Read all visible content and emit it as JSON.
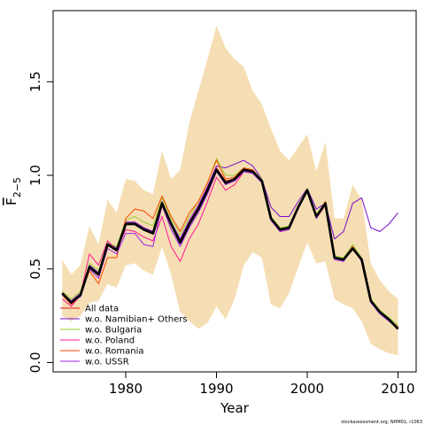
{
  "chart_data": {
    "type": "line",
    "xlabel": "Year",
    "ylabel": {
      "base": "F",
      "sub": "2−5"
    },
    "xlim": [
      1972,
      2012
    ],
    "ylim": [
      -0.05,
      1.88
    ],
    "xticks": [
      1980,
      1990,
      2000,
      2010
    ],
    "yticks": [
      0.0,
      0.5,
      1.0,
      1.5
    ],
    "ytick_labels": [
      "0.0",
      "0.5",
      "1.0",
      "1.5"
    ],
    "legend_position": "bottom-left",
    "footer": "stockassessment.org, NHM01, r1063",
    "band": {
      "color": "#F5DEB3",
      "x": [
        1973,
        1974,
        1975,
        1976,
        1977,
        1978,
        1979,
        1980,
        1981,
        1982,
        1983,
        1984,
        1985,
        1986,
        1987,
        1988,
        1989,
        1990,
        1991,
        1992,
        1993,
        1994,
        1995,
        1996,
        1997,
        1998,
        1999,
        2000,
        2001,
        2002,
        2003,
        2004,
        2005,
        2006,
        2007,
        2008,
        2009,
        2010
      ],
      "upper": [
        0.55,
        0.47,
        0.52,
        0.73,
        0.63,
        0.87,
        0.8,
        0.98,
        0.97,
        0.92,
        0.9,
        1.13,
        0.98,
        1.03,
        1.28,
        1.45,
        1.62,
        1.8,
        1.68,
        1.62,
        1.58,
        1.45,
        1.38,
        1.25,
        1.13,
        1.08,
        1.15,
        1.22,
        1.02,
        1.18,
        0.77,
        0.77,
        0.95,
        0.87,
        0.53,
        0.44,
        0.38,
        0.34
      ],
      "lower": [
        0.25,
        0.22,
        0.25,
        0.32,
        0.33,
        0.42,
        0.4,
        0.52,
        0.53,
        0.49,
        0.47,
        0.62,
        0.47,
        0.27,
        0.22,
        0.18,
        0.21,
        0.3,
        0.23,
        0.34,
        0.52,
        0.59,
        0.56,
        0.31,
        0.29,
        0.37,
        0.51,
        0.64,
        0.53,
        0.54,
        0.34,
        0.31,
        0.29,
        0.22,
        0.1,
        0.07,
        0.05,
        0.04
      ]
    },
    "x": [
      1973,
      1974,
      1975,
      1976,
      1977,
      1978,
      1979,
      1980,
      1981,
      1982,
      1983,
      1984,
      1985,
      1986,
      1987,
      1988,
      1989,
      1990,
      1991,
      1992,
      1993,
      1994,
      1995,
      1996,
      1997,
      1998,
      1999,
      2000,
      2001,
      2002,
      2003,
      2004,
      2005,
      2006,
      2007,
      2008,
      2009,
      2010
    ],
    "series": [
      {
        "name": "All data",
        "color": "#000000",
        "width": 2.6,
        "in_legend": false,
        "values": [
          0.37,
          0.32,
          0.36,
          0.51,
          0.47,
          0.63,
          0.6,
          0.74,
          0.74,
          0.71,
          0.69,
          0.85,
          0.74,
          0.64,
          0.74,
          0.82,
          0.92,
          1.03,
          0.96,
          0.98,
          1.03,
          1.02,
          0.97,
          0.77,
          0.71,
          0.72,
          0.83,
          0.92,
          0.78,
          0.85,
          0.56,
          0.55,
          0.61,
          0.55,
          0.33,
          0.27,
          0.23,
          0.18
        ]
      },
      {
        "name": "All data",
        "color": "#E41A1C",
        "width": 1,
        "in_legend": true,
        "values": [
          0.37,
          0.33,
          0.36,
          0.51,
          0.47,
          0.63,
          0.6,
          0.75,
          0.75,
          0.72,
          0.7,
          0.86,
          0.74,
          0.65,
          0.75,
          0.83,
          0.93,
          1.04,
          0.97,
          0.98,
          1.03,
          1.02,
          0.97,
          0.77,
          0.71,
          0.72,
          0.83,
          0.92,
          0.78,
          0.86,
          0.56,
          0.55,
          0.62,
          0.55,
          0.33,
          0.27,
          0.23,
          0.19
        ]
      },
      {
        "name": "w.o. Namibian+ Others",
        "color": "#7A0ACB",
        "width": 1,
        "in_legend": true,
        "values": [
          0.37,
          0.33,
          0.37,
          0.52,
          0.48,
          0.64,
          0.61,
          0.75,
          0.75,
          0.72,
          0.7,
          0.86,
          0.75,
          0.66,
          0.76,
          0.84,
          0.94,
          1.05,
          1.04,
          1.06,
          1.08,
          1.05,
          0.98,
          0.83,
          0.78,
          0.78,
          0.86,
          0.93,
          0.82,
          0.85,
          0.66,
          0.7,
          0.85,
          0.88,
          0.72,
          0.7,
          0.74,
          0.8
        ]
      },
      {
        "name": "w.o. Bulgaria",
        "color": "#9ACD32",
        "width": 1,
        "in_legend": true,
        "values": [
          0.38,
          0.34,
          0.38,
          0.53,
          0.49,
          0.64,
          0.62,
          0.76,
          0.78,
          0.75,
          0.73,
          0.88,
          0.77,
          0.68,
          0.78,
          0.86,
          0.96,
          1.09,
          1.0,
          1.0,
          1.04,
          1.03,
          0.98,
          0.78,
          0.72,
          0.73,
          0.84,
          0.93,
          0.79,
          0.86,
          0.57,
          0.56,
          0.63,
          0.56,
          0.34,
          0.28,
          0.24,
          0.2
        ]
      },
      {
        "name": "w.o. Poland",
        "color": "#FF1493",
        "width": 1,
        "in_legend": true,
        "values": [
          0.34,
          0.3,
          0.36,
          0.58,
          0.52,
          0.65,
          0.6,
          0.71,
          0.7,
          0.67,
          0.65,
          0.78,
          0.62,
          0.54,
          0.66,
          0.74,
          0.86,
          0.99,
          0.92,
          0.95,
          1.02,
          1.01,
          0.96,
          0.76,
          0.7,
          0.71,
          0.82,
          0.92,
          0.77,
          0.84,
          0.56,
          0.55,
          0.61,
          0.55,
          0.33,
          0.27,
          0.23,
          0.19
        ]
      },
      {
        "name": "w.o. Romania",
        "color": "#FF4500",
        "width": 1,
        "in_legend": true,
        "values": [
          0.36,
          0.31,
          0.36,
          0.49,
          0.42,
          0.56,
          0.56,
          0.77,
          0.82,
          0.81,
          0.77,
          0.89,
          0.78,
          0.7,
          0.8,
          0.86,
          0.96,
          1.08,
          0.98,
          0.99,
          1.04,
          1.03,
          0.97,
          0.77,
          0.71,
          0.72,
          0.83,
          0.92,
          0.78,
          0.86,
          0.56,
          0.55,
          0.62,
          0.55,
          0.33,
          0.27,
          0.23,
          0.19
        ]
      },
      {
        "name": "w.o. USSR",
        "color": "#A020F0",
        "width": 1,
        "in_legend": true,
        "values": [
          0.36,
          0.33,
          0.35,
          0.5,
          0.45,
          0.61,
          0.58,
          0.69,
          0.69,
          0.63,
          0.62,
          0.84,
          0.71,
          0.62,
          0.72,
          0.8,
          0.9,
          1.02,
          0.95,
          0.97,
          1.02,
          1.01,
          0.96,
          0.76,
          0.7,
          0.71,
          0.82,
          0.92,
          0.77,
          0.85,
          0.55,
          0.54,
          0.61,
          0.54,
          0.32,
          0.26,
          0.22,
          0.18
        ]
      }
    ]
  }
}
